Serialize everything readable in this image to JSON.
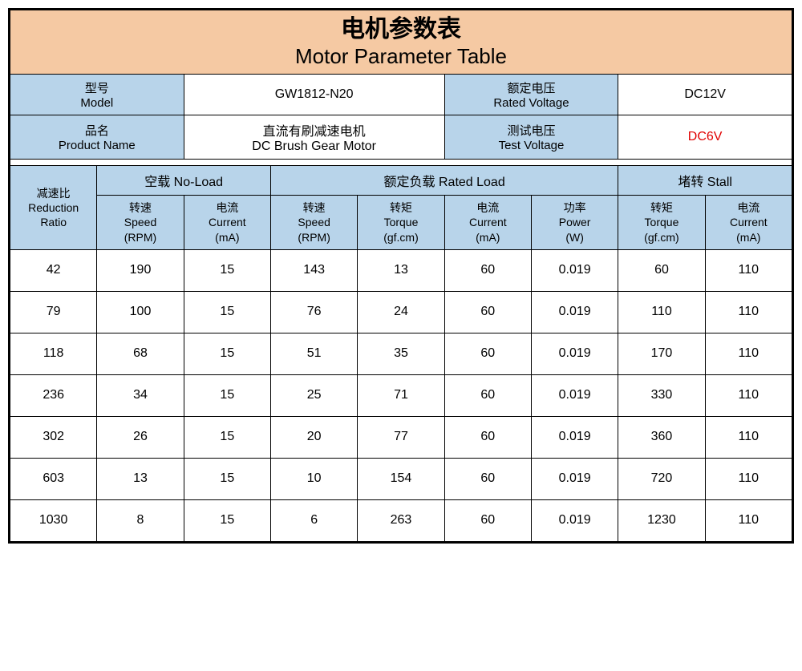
{
  "colors": {
    "title_bg": "#f5c9a3",
    "header_bg": "#b8d4ea",
    "border": "#000000",
    "text": "#000000",
    "highlight": "#e00000",
    "background": "#ffffff"
  },
  "title": {
    "cn": "电机参数表",
    "en": "Motor Parameter Table"
  },
  "info": {
    "model_label_cn": "型号",
    "model_label_en": "Model",
    "model_value": "GW1812-N20",
    "rated_voltage_label_cn": "额定电压",
    "rated_voltage_label_en": "Rated Voltage",
    "rated_voltage_value": "DC12V",
    "product_name_label_cn": "品名",
    "product_name_label_en": "Product Name",
    "product_name_value_cn": "直流有刷减速电机",
    "product_name_value_en": "DC Brush Gear Motor",
    "test_voltage_label_cn": "测试电压",
    "test_voltage_label_en": "Test Voltage",
    "test_voltage_value": "DC6V"
  },
  "groups": {
    "reduction_ratio_cn": "减速比",
    "reduction_ratio_en1": "Reduction",
    "reduction_ratio_en2": "Ratio",
    "no_load": "空载 No-Load",
    "rated_load": "额定负载 Rated Load",
    "stall": "堵转 Stall"
  },
  "cols": {
    "speed_cn": "转速",
    "speed_en": "Speed",
    "speed_unit": "(RPM)",
    "current_cn": "电流",
    "current_en": "Current",
    "current_unit": "(mA)",
    "torque_cn": "转矩",
    "torque_en": "Torque",
    "torque_unit": "(gf.cm)",
    "power_cn": "功率",
    "power_en": "Power",
    "power_unit": "(W)"
  },
  "rows": [
    {
      "ratio": "42",
      "nl_speed": "190",
      "nl_cur": "15",
      "rl_speed": "143",
      "rl_torque": "13",
      "rl_cur": "60",
      "rl_pow": "0.019",
      "st_torque": "60",
      "st_cur": "110"
    },
    {
      "ratio": "79",
      "nl_speed": "100",
      "nl_cur": "15",
      "rl_speed": "76",
      "rl_torque": "24",
      "rl_cur": "60",
      "rl_pow": "0.019",
      "st_torque": "110",
      "st_cur": "110"
    },
    {
      "ratio": "118",
      "nl_speed": "68",
      "nl_cur": "15",
      "rl_speed": "51",
      "rl_torque": "35",
      "rl_cur": "60",
      "rl_pow": "0.019",
      "st_torque": "170",
      "st_cur": "110"
    },
    {
      "ratio": "236",
      "nl_speed": "34",
      "nl_cur": "15",
      "rl_speed": "25",
      "rl_torque": "71",
      "rl_cur": "60",
      "rl_pow": "0.019",
      "st_torque": "330",
      "st_cur": "110"
    },
    {
      "ratio": "302",
      "nl_speed": "26",
      "nl_cur": "15",
      "rl_speed": "20",
      "rl_torque": "77",
      "rl_cur": "60",
      "rl_pow": "0.019",
      "st_torque": "360",
      "st_cur": "110"
    },
    {
      "ratio": "603",
      "nl_speed": "13",
      "nl_cur": "15",
      "rl_speed": "10",
      "rl_torque": "154",
      "rl_cur": "60",
      "rl_pow": "0.019",
      "st_torque": "720",
      "st_cur": "110"
    },
    {
      "ratio": "1030",
      "nl_speed": "8",
      "nl_cur": "15",
      "rl_speed": "6",
      "rl_torque": "263",
      "rl_cur": "60",
      "rl_pow": "0.019",
      "st_torque": "1230",
      "st_cur": "110"
    }
  ]
}
